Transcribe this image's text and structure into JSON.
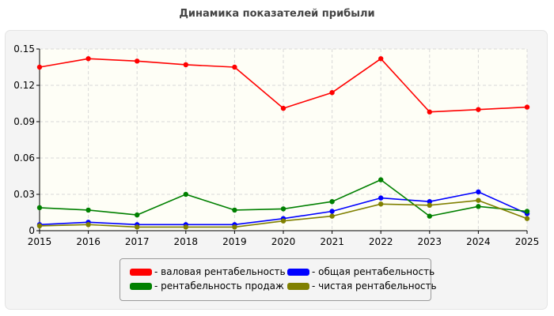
{
  "chart_data": {
    "type": "line",
    "title": "Динамика показателей прибыли",
    "xlabel": "",
    "ylabel": "",
    "x": [
      2015,
      2016,
      2017,
      2018,
      2019,
      2020,
      2021,
      2022,
      2023,
      2024,
      2025
    ],
    "ylim": [
      0,
      0.15
    ],
    "yticks": [
      0,
      0.03,
      0.06,
      0.09,
      0.12,
      0.15
    ],
    "ytick_labels": [
      "0",
      "0.03",
      "0.06",
      "0.09",
      "0.12",
      "0.15"
    ],
    "grid": true,
    "legend_position": "bottom",
    "series": [
      {
        "name": "- валовая рентабельность",
        "color": "#ff0000",
        "values": [
          0.135,
          0.142,
          0.14,
          0.137,
          0.135,
          0.101,
          0.114,
          0.142,
          0.098,
          0.1,
          0.102
        ]
      },
      {
        "name": "- общая рентабельность",
        "color": "#0000ff",
        "values": [
          0.005,
          0.007,
          0.005,
          0.005,
          0.005,
          0.01,
          0.016,
          0.027,
          0.024,
          0.032,
          0.014
        ]
      },
      {
        "name": "- рентабельность продаж",
        "color": "#008000",
        "values": [
          0.019,
          0.017,
          0.013,
          0.03,
          0.017,
          0.018,
          0.024,
          0.042,
          0.012,
          0.02,
          0.016
        ]
      },
      {
        "name": "- чистая рентабельность",
        "color": "#808000",
        "values": [
          0.004,
          0.005,
          0.003,
          0.003,
          0.003,
          0.008,
          0.012,
          0.022,
          0.021,
          0.025,
          0.01
        ]
      }
    ]
  }
}
